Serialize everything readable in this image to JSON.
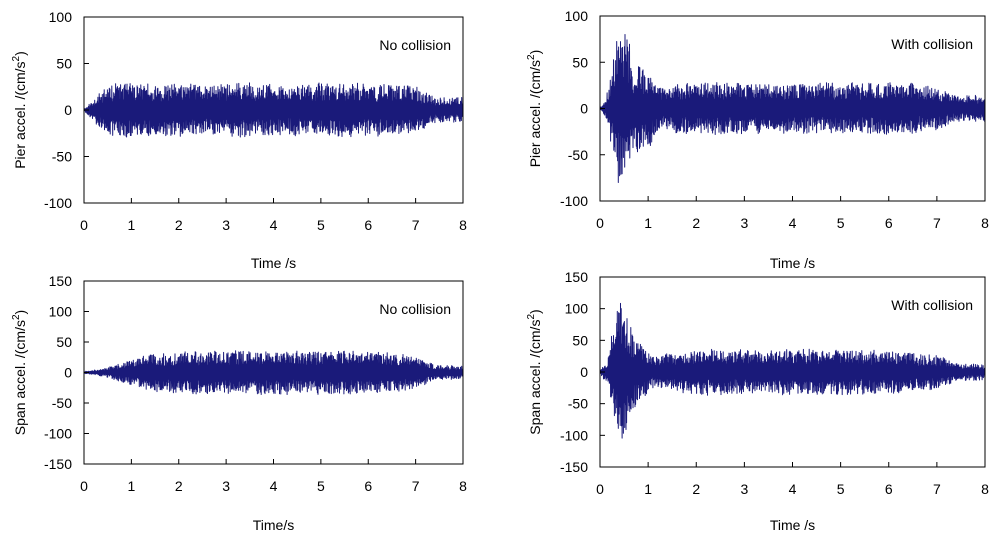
{
  "chart_data": [
    {
      "type": "line",
      "annotation": "No collision",
      "xlabel": "Time /s",
      "ylabel": "Pier accel. /(cm/s",
      "ylabel_sup": "2",
      "ylabel_close": ")",
      "xlim": [
        0,
        8
      ],
      "ylim": [
        -100,
        100
      ],
      "x_ticks": [
        0,
        1,
        2,
        3,
        4,
        5,
        6,
        7,
        8
      ],
      "y_ticks": [
        -100,
        -50,
        0,
        50,
        100
      ],
      "grid": false,
      "legend": "none",
      "series": [
        {
          "color": "#1a1a7a",
          "x": [
            0,
            0.5,
            0.9,
            1.5,
            2.5,
            3.5,
            4.5,
            5.5,
            6.5,
            7.0,
            7.4,
            8.0
          ],
          "amplitude": [
            1,
            27,
            29,
            27,
            27,
            28,
            27,
            28,
            27,
            25,
            13,
            13
          ]
        }
      ]
    },
    {
      "type": "line",
      "annotation": "With collision",
      "xlabel": "Time /s",
      "ylabel": "Pier accel. /(cm/s",
      "ylabel_sup": "2",
      "ylabel_close": ")",
      "xlim": [
        0,
        8
      ],
      "ylim": [
        -100,
        100
      ],
      "x_ticks": [
        0,
        1,
        2,
        3,
        4,
        5,
        6,
        7,
        8
      ],
      "y_ticks": [
        -100,
        -50,
        0,
        50,
        100
      ],
      "grid": false,
      "legend": "none",
      "series": [
        {
          "color": "#1a1a7a",
          "x": [
            0,
            0.1,
            0.25,
            0.35,
            0.45,
            0.55,
            0.7,
            1.0,
            1.3,
            1.6,
            2.5,
            3.5,
            4.5,
            5.5,
            6.5,
            7.0,
            7.4,
            8.0
          ],
          "amplitude": [
            1,
            8,
            40,
            88,
            78,
            82,
            45,
            45,
            22,
            27,
            27,
            27,
            27,
            27,
            27,
            24,
            14,
            14
          ]
        }
      ]
    },
    {
      "type": "line",
      "annotation": "No collision",
      "xlabel": "Time/s",
      "ylabel": "Span accel. /(cm/s",
      "ylabel_sup": "2",
      "ylabel_close": ")",
      "xlim": [
        0,
        8
      ],
      "ylim": [
        -150,
        150
      ],
      "x_ticks": [
        0,
        1,
        2,
        3,
        4,
        5,
        6,
        7,
        8
      ],
      "y_ticks": [
        -150,
        -100,
        -50,
        0,
        50,
        100,
        150
      ],
      "grid": false,
      "legend": "none",
      "series": [
        {
          "color": "#1a1a7a",
          "x": [
            0,
            0.4,
            0.9,
            1.5,
            2.5,
            3.5,
            4.5,
            5.5,
            6.5,
            7.0,
            7.4,
            8.0
          ],
          "amplitude": [
            2,
            6,
            18,
            32,
            34,
            35,
            35,
            35,
            33,
            26,
            12,
            10
          ]
        }
      ]
    },
    {
      "type": "line",
      "annotation": "With collision",
      "xlabel": "Time /s",
      "ylabel": "Span accel. /(cm/s",
      "ylabel_sup": "2",
      "ylabel_close": ")",
      "xlim": [
        0,
        8
      ],
      "ylim": [
        -150,
        150
      ],
      "x_ticks": [
        0,
        1,
        2,
        3,
        4,
        5,
        6,
        7,
        8
      ],
      "y_ticks": [
        -150,
        -100,
        -50,
        0,
        50,
        100,
        150
      ],
      "grid": false,
      "legend": "none",
      "series": [
        {
          "color": "#1a1a7a",
          "x": [
            0,
            0.15,
            0.25,
            0.35,
            0.45,
            0.55,
            0.7,
            0.9,
            1.1,
            1.4,
            2.0,
            3.0,
            4.0,
            5.0,
            6.0,
            7.0,
            7.4,
            8.0
          ],
          "amplitude": [
            2,
            20,
            60,
            100,
            120,
            85,
            55,
            40,
            25,
            28,
            35,
            35,
            35,
            35,
            33,
            27,
            14,
            12
          ]
        }
      ]
    }
  ]
}
